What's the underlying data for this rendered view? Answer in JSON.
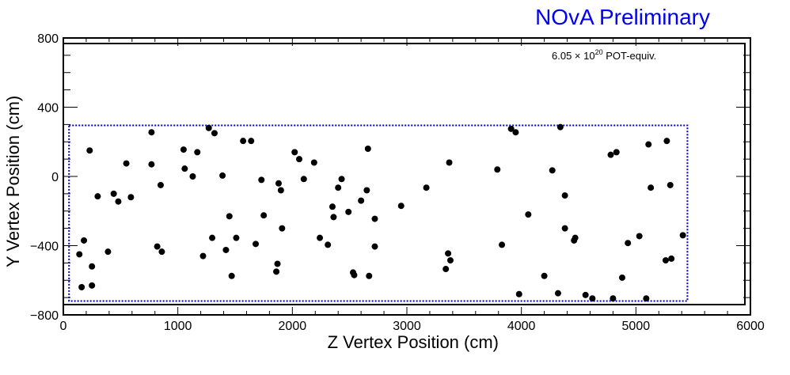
{
  "chart_data": {
    "type": "scatter",
    "title": "NOvA Preliminary",
    "title_color": "#0000ee",
    "annotation": {
      "base": "6.05 × 10",
      "exponent": "20",
      "suffix": " POT-equiv."
    },
    "xlabel": "Z Vertex Position (cm)",
    "ylabel": "Y Vertex Position (cm)",
    "xlim": [
      0,
      6000
    ],
    "ylim": [
      -800,
      800
    ],
    "xticks": [
      0,
      1000,
      2000,
      3000,
      4000,
      5000,
      6000
    ],
    "xtick_labels": [
      "0",
      "1000",
      "2000",
      "3000",
      "4000",
      "5000",
      "6000"
    ],
    "yticks": [
      -800,
      -400,
      0,
      400,
      800
    ],
    "ytick_labels": [
      "−800",
      "−400",
      "0",
      "400",
      "800"
    ],
    "grid": false,
    "point_color": "#000000",
    "fiducial_box": {
      "x": [
        50,
        5450
      ],
      "y": [
        -720,
        295
      ],
      "color": "#0000cc",
      "style": "dotted"
    },
    "points": [
      [
        160,
        -640
      ],
      [
        140,
        -450
      ],
      [
        180,
        -370
      ],
      [
        230,
        150
      ],
      [
        250,
        -520
      ],
      [
        250,
        -630
      ],
      [
        300,
        -115
      ],
      [
        390,
        -435
      ],
      [
        440,
        -100
      ],
      [
        480,
        -145
      ],
      [
        550,
        75
      ],
      [
        590,
        -120
      ],
      [
        770,
        255
      ],
      [
        770,
        70
      ],
      [
        820,
        -405
      ],
      [
        850,
        -50
      ],
      [
        860,
        -435
      ],
      [
        1050,
        155
      ],
      [
        1060,
        45
      ],
      [
        1130,
        0
      ],
      [
        1170,
        140
      ],
      [
        1220,
        -460
      ],
      [
        1270,
        280
      ],
      [
        1300,
        -355
      ],
      [
        1320,
        250
      ],
      [
        1390,
        5
      ],
      [
        1420,
        -425
      ],
      [
        1450,
        -230
      ],
      [
        1470,
        -575
      ],
      [
        1510,
        -355
      ],
      [
        1570,
        205
      ],
      [
        1640,
        205
      ],
      [
        1680,
        -390
      ],
      [
        1730,
        -20
      ],
      [
        1750,
        -225
      ],
      [
        1860,
        -550
      ],
      [
        1870,
        -505
      ],
      [
        1880,
        -40
      ],
      [
        1900,
        -80
      ],
      [
        1910,
        -300
      ],
      [
        2020,
        140
      ],
      [
        2060,
        100
      ],
      [
        2100,
        -15
      ],
      [
        2190,
        80
      ],
      [
        2240,
        -355
      ],
      [
        2310,
        -395
      ],
      [
        2350,
        -175
      ],
      [
        2360,
        -235
      ],
      [
        2400,
        -65
      ],
      [
        2430,
        -15
      ],
      [
        2490,
        -205
      ],
      [
        2530,
        -555
      ],
      [
        2540,
        -570
      ],
      [
        2600,
        -140
      ],
      [
        2650,
        -80
      ],
      [
        2660,
        160
      ],
      [
        2670,
        -575
      ],
      [
        2720,
        -405
      ],
      [
        2720,
        -245
      ],
      [
        2950,
        -170
      ],
      [
        3170,
        -65
      ],
      [
        3340,
        -535
      ],
      [
        3360,
        -445
      ],
      [
        3370,
        80
      ],
      [
        3380,
        -485
      ],
      [
        3790,
        40
      ],
      [
        3830,
        -395
      ],
      [
        3910,
        275
      ],
      [
        3950,
        255
      ],
      [
        3980,
        -680
      ],
      [
        4060,
        -220
      ],
      [
        4200,
        -575
      ],
      [
        4270,
        35
      ],
      [
        4320,
        -675
      ],
      [
        4340,
        285
      ],
      [
        4380,
        -300
      ],
      [
        4380,
        -110
      ],
      [
        4460,
        -370
      ],
      [
        4470,
        -355
      ],
      [
        4560,
        -685
      ],
      [
        4620,
        -705
      ],
      [
        4780,
        125
      ],
      [
        4800,
        -705
      ],
      [
        4830,
        140
      ],
      [
        4880,
        -585
      ],
      [
        4930,
        -385
      ],
      [
        5030,
        -345
      ],
      [
        5090,
        -705
      ],
      [
        5110,
        185
      ],
      [
        5130,
        -65
      ],
      [
        5260,
        -485
      ],
      [
        5270,
        205
      ],
      [
        5300,
        -50
      ],
      [
        5310,
        -475
      ],
      [
        5410,
        -340
      ]
    ]
  }
}
